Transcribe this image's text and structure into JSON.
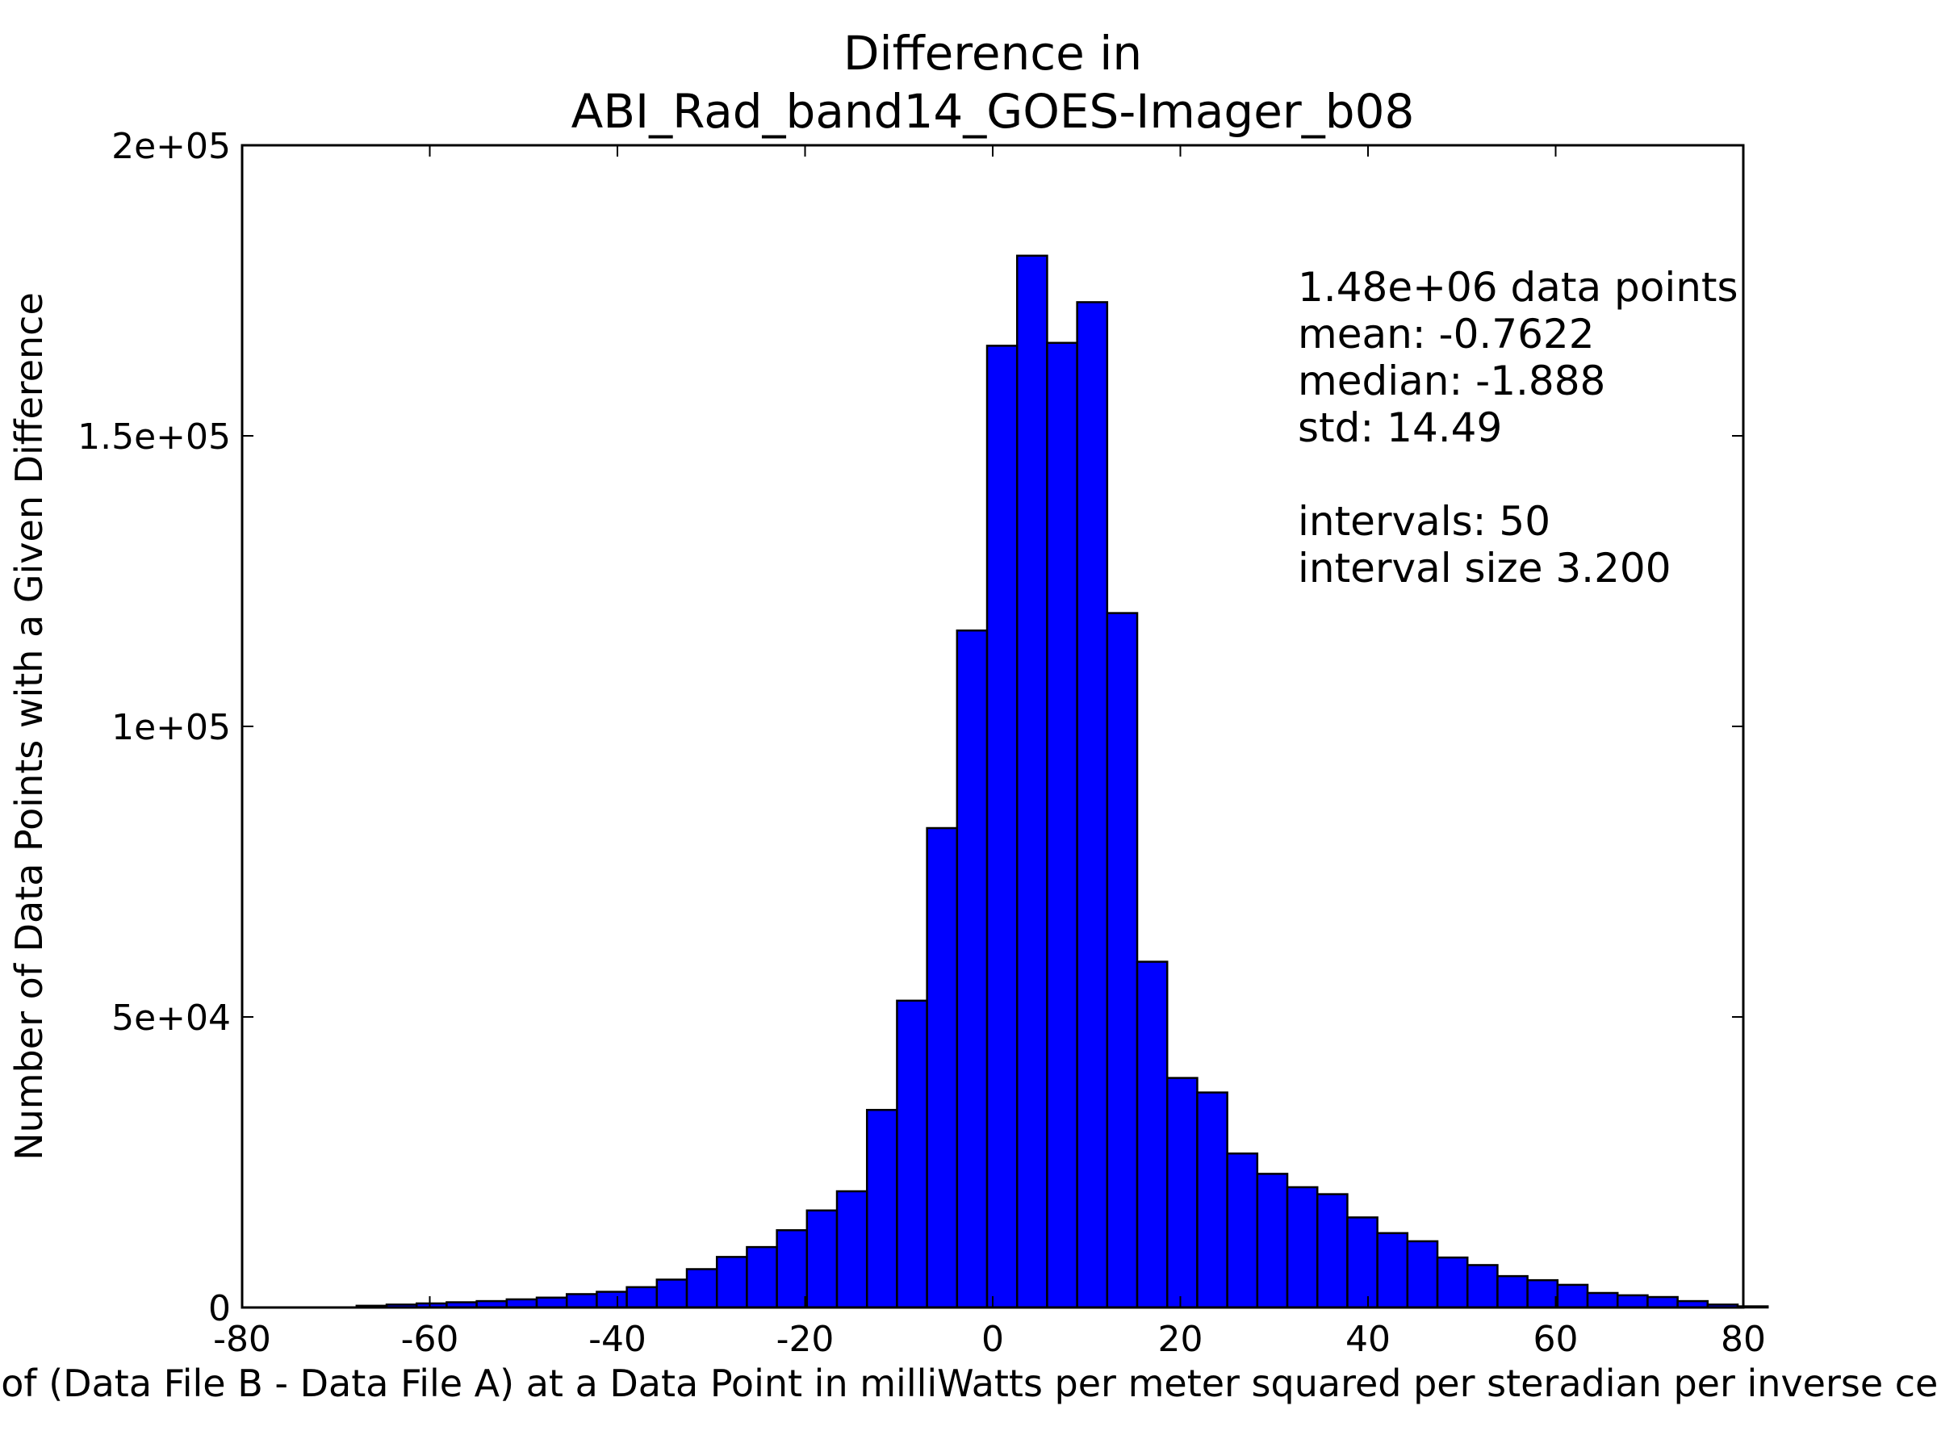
{
  "chart_data": {
    "type": "bar",
    "title": [
      "Difference in",
      "ABI_Rad_band14_GOES-Imager_b08"
    ],
    "xlabel": "Value of (Data File B - Data File A) at a Data Point in milliWatts per meter squared per steradian per inverse centimeter",
    "ylabel": "Number of Data Points with a Given Difference",
    "xlim": [
      -80,
      80
    ],
    "ylim": [
      0,
      200000
    ],
    "x_ticks": [
      -80,
      -60,
      -40,
      -20,
      0,
      20,
      40,
      60,
      80
    ],
    "x_tick_labels": [
      "-80",
      "-60",
      "-40",
      "-20",
      "0",
      "20",
      "40",
      "60",
      "80"
    ],
    "y_ticks": [
      0,
      50000,
      100000,
      150000,
      200000
    ],
    "y_tick_labels": [
      "0",
      "5e+04",
      "1e+05",
      "1.5e+05",
      "2e+05"
    ],
    "bin_start": -77.4,
    "bin_width": 3.2,
    "values": [
      0,
      0,
      0,
      300,
      500,
      700,
      900,
      1100,
      1400,
      1700,
      2300,
      2700,
      3500,
      4800,
      6600,
      8700,
      10400,
      13300,
      16700,
      20000,
      34000,
      52800,
      82500,
      116500,
      165500,
      181000,
      166000,
      173000,
      119500,
      59500,
      39500,
      37000,
      26500,
      23000,
      20700,
      19500,
      15500,
      12800,
      11400,
      8600,
      7300,
      5400,
      4700,
      3900,
      2500,
      2100,
      1800,
      1100,
      500,
      200
    ],
    "bar_color": "#0000ff",
    "edge_color": "#000000",
    "annotations": [
      "1.48e+06 data points",
      "mean: -0.7622",
      "median: -1.888",
      "std: 14.49",
      "",
      "intervals: 50",
      "interval size 3.200"
    ],
    "annotation_placement": "top-right",
    "grid": false,
    "legend": "none"
  }
}
